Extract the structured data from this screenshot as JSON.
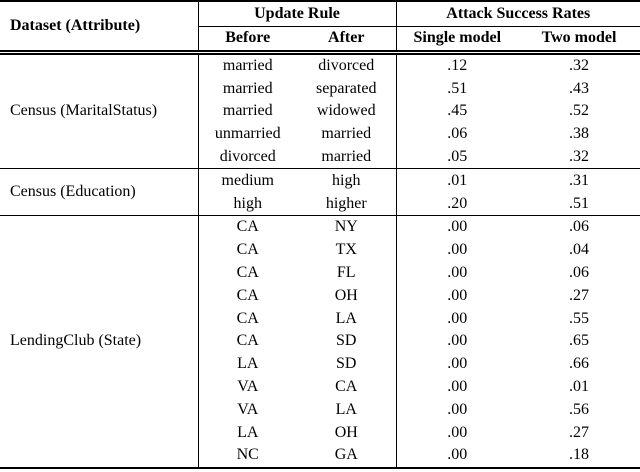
{
  "table": {
    "header": {
      "dataset_col": "Dataset (Attribute)",
      "update_rule_group": "Update Rule",
      "attack_group": "Attack Success Rates",
      "before": "Before",
      "after": "After",
      "single_model": "Single model",
      "two_model": "Two model"
    },
    "groups": [
      {
        "dataset": "Census (MaritalStatus)",
        "rows": [
          {
            "before": "married",
            "after": "divorced",
            "single": ".12",
            "two": ".32"
          },
          {
            "before": "married",
            "after": "separated",
            "single": ".51",
            "two": ".43"
          },
          {
            "before": "married",
            "after": "widowed",
            "single": ".45",
            "two": ".52"
          },
          {
            "before": "unmarried",
            "after": "married",
            "single": ".06",
            "two": ".38"
          },
          {
            "before": "divorced",
            "after": "married",
            "single": ".05",
            "two": ".32"
          }
        ]
      },
      {
        "dataset": "Census (Education)",
        "rows": [
          {
            "before": "medium",
            "after": "high",
            "single": ".01",
            "two": ".31"
          },
          {
            "before": "high",
            "after": "higher",
            "single": ".20",
            "two": ".51"
          }
        ]
      },
      {
        "dataset": "LendingClub (State)",
        "rows": [
          {
            "before": "CA",
            "after": "NY",
            "single": ".00",
            "two": ".06"
          },
          {
            "before": "CA",
            "after": "TX",
            "single": ".00",
            "two": ".04"
          },
          {
            "before": "CA",
            "after": "FL",
            "single": ".00",
            "two": ".06"
          },
          {
            "before": "CA",
            "after": "OH",
            "single": ".00",
            "two": ".27"
          },
          {
            "before": "CA",
            "after": "LA",
            "single": ".00",
            "two": ".55"
          },
          {
            "before": "CA",
            "after": "SD",
            "single": ".00",
            "two": ".65"
          },
          {
            "before": "LA",
            "after": "SD",
            "single": ".00",
            "two": ".66"
          },
          {
            "before": "VA",
            "after": "CA",
            "single": ".00",
            "two": ".01"
          },
          {
            "before": "VA",
            "after": "LA",
            "single": ".00",
            "two": ".56"
          },
          {
            "before": "LA",
            "after": "OH",
            "single": ".00",
            "two": ".27"
          },
          {
            "before": "NC",
            "after": "GA",
            "single": ".00",
            "two": ".18"
          }
        ]
      }
    ]
  },
  "colors": {
    "text": "#000000",
    "rule": "#000000",
    "background": "#ffffff"
  }
}
